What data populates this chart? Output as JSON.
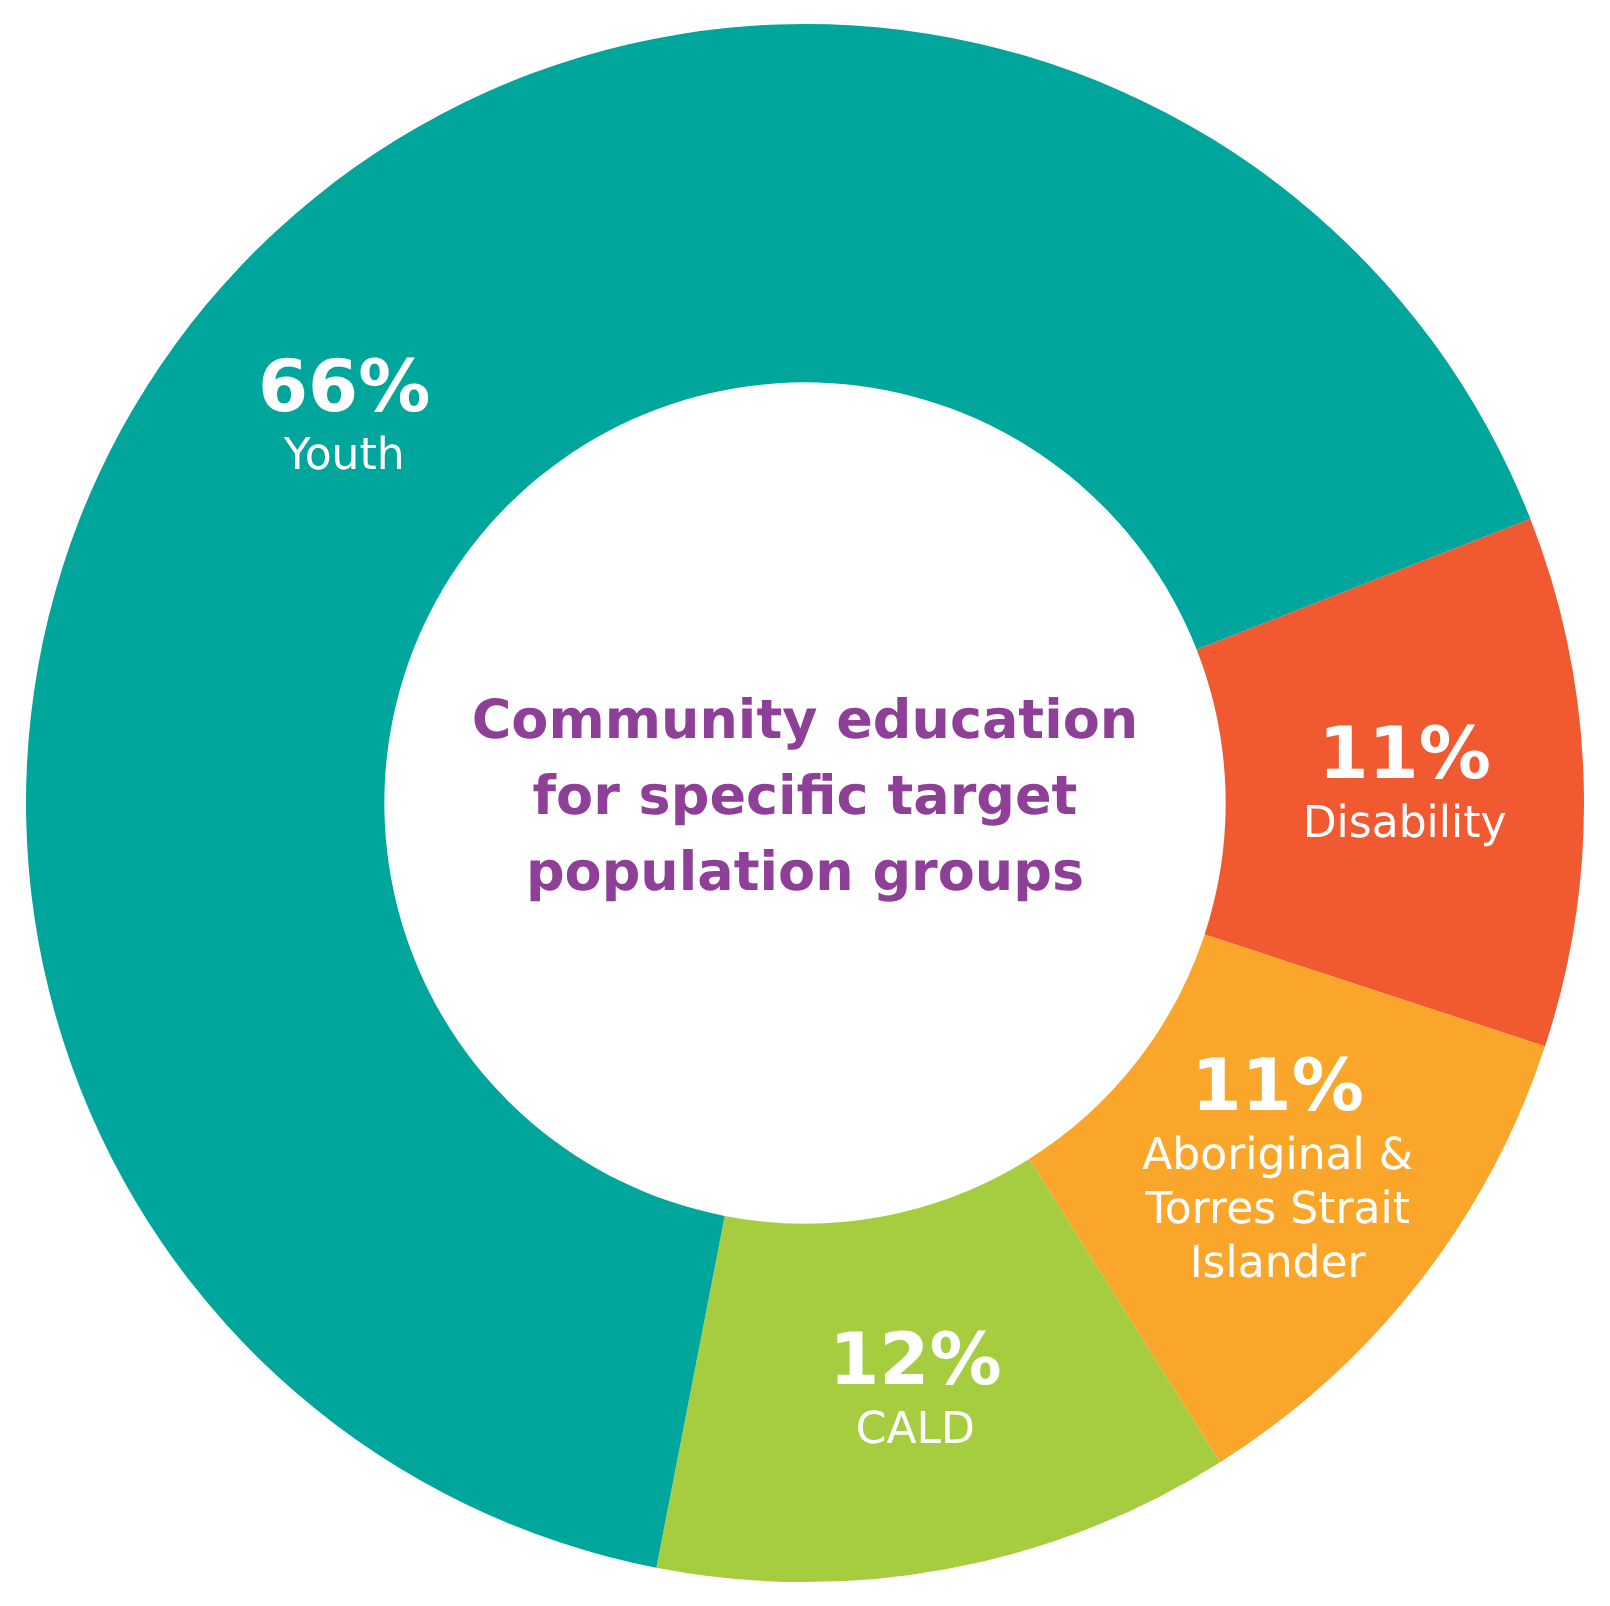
{
  "chart_data": {
    "type": "donut",
    "title": "Community education for specific target population groups",
    "categories": [
      "Disability",
      "Aboriginal & Torres Strait Islander",
      "CALD",
      "Youth"
    ],
    "values": [
      11,
      11,
      12,
      66
    ],
    "value_labels": [
      "11%",
      "11%",
      "12%",
      "66%"
    ],
    "colors": [
      "#f15a31",
      "#faa62b",
      "#a5cd3f",
      "#00a69c"
    ],
    "legend": false
  }
}
